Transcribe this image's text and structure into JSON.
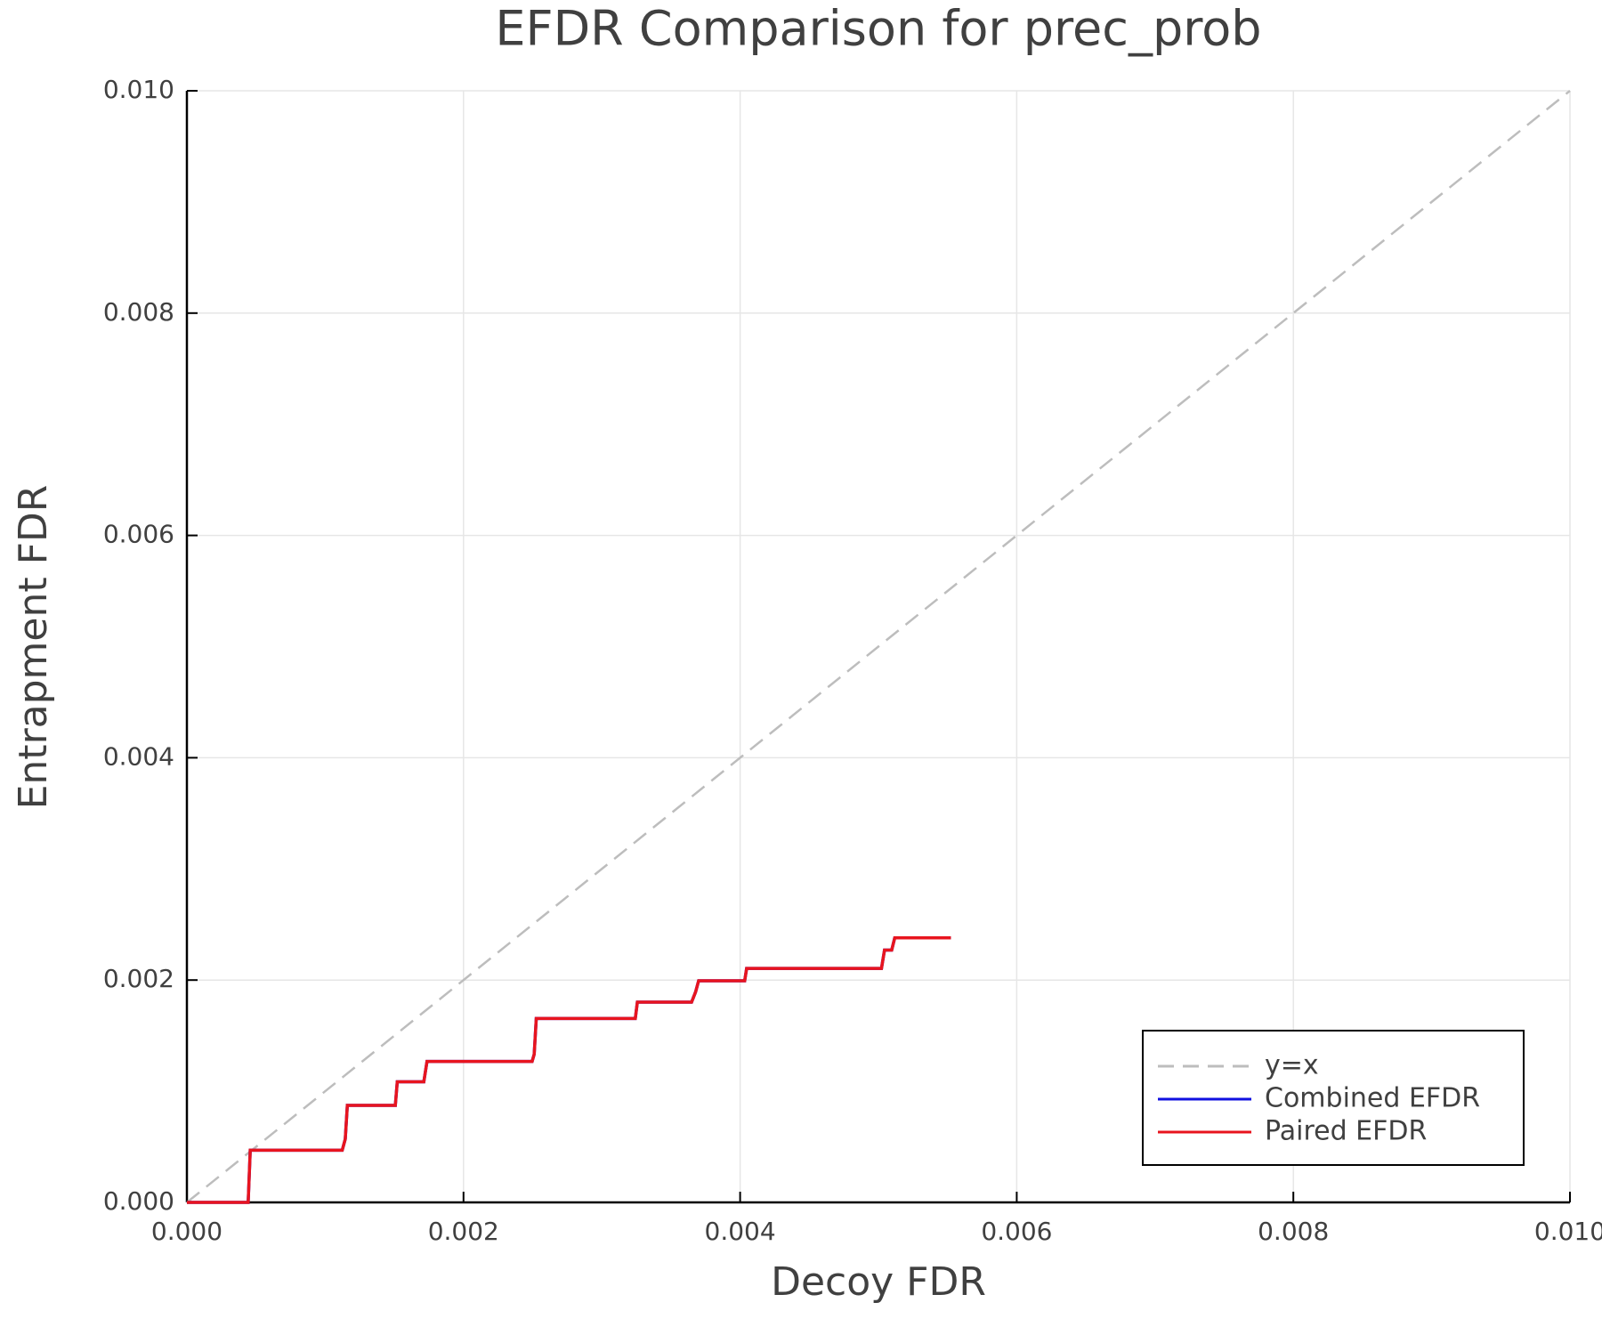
{
  "chart_data": {
    "type": "line",
    "title": "EFDR Comparison for prec_prob",
    "x_label": "Decoy FDR",
    "y_label": "Entrapment FDR",
    "xlim": [
      0,
      0.01
    ],
    "ylim": [
      0,
      0.01
    ],
    "xticks": [
      {
        "value": 0,
        "label": "0.000"
      },
      {
        "value": 0.002,
        "label": "0.002"
      },
      {
        "value": 0.004,
        "label": "0.004"
      },
      {
        "value": 0.006,
        "label": "0.006"
      },
      {
        "value": 0.008,
        "label": "0.008"
      },
      {
        "value": 0.01,
        "label": "0.010"
      }
    ],
    "yticks": [
      {
        "value": 0,
        "label": "0.000"
      },
      {
        "value": 0.002,
        "label": "0.002"
      },
      {
        "value": 0.004,
        "label": "0.004"
      },
      {
        "value": 0.006,
        "label": "0.006"
      },
      {
        "value": 0.008,
        "label": "0.008"
      },
      {
        "value": 0.01,
        "label": "0.010"
      }
    ],
    "grid": true,
    "legend": "bottom right",
    "series": [
      {
        "name": "y=x",
        "color": "#bdbdbd",
        "linestyle": "dashed",
        "x": [
          0,
          0.01
        ],
        "values": [
          0,
          0.01
        ]
      },
      {
        "name": "Combined EFDR",
        "color": "#1010e0",
        "linestyle": "solid",
        "x": [
          0,
          0.000443,
          0.000458,
          0.001123,
          0.001145,
          0.00116,
          0.001507,
          0.001521,
          0.001713,
          0.001736,
          0.002496,
          0.002511,
          0.002526,
          0.003242,
          0.003257,
          0.003649,
          0.003678,
          0.0037,
          0.004033,
          0.004047,
          0.005022,
          0.005044,
          0.005096,
          0.005118,
          0.005524
        ],
        "values": [
          0,
          0,
          0.000469,
          0.000469,
          0.00057,
          0.000873,
          0.000873,
          0.001085,
          0.001085,
          0.001268,
          0.001268,
          0.001332,
          0.001654,
          0.001654,
          0.001801,
          0.001801,
          0.001893,
          0.001994,
          0.001994,
          0.002105,
          0.002105,
          0.00227,
          0.00227,
          0.00238,
          0.00238
        ]
      },
      {
        "name": "Paired EFDR",
        "color": "#e8141e",
        "linestyle": "solid",
        "x": [
          0,
          0.000443,
          0.000458,
          0.001123,
          0.001145,
          0.00116,
          0.001507,
          0.001521,
          0.001713,
          0.001736,
          0.002496,
          0.002511,
          0.002526,
          0.003242,
          0.003257,
          0.003649,
          0.003678,
          0.0037,
          0.004033,
          0.004047,
          0.005022,
          0.005044,
          0.005096,
          0.005118,
          0.005524
        ],
        "values": [
          0,
          0,
          0.000469,
          0.000469,
          0.00057,
          0.000873,
          0.000873,
          0.001085,
          0.001085,
          0.001268,
          0.001268,
          0.001332,
          0.001654,
          0.001654,
          0.001801,
          0.001801,
          0.001893,
          0.001994,
          0.001994,
          0.002105,
          0.002105,
          0.00227,
          0.00227,
          0.00238,
          0.00238
        ]
      }
    ]
  }
}
